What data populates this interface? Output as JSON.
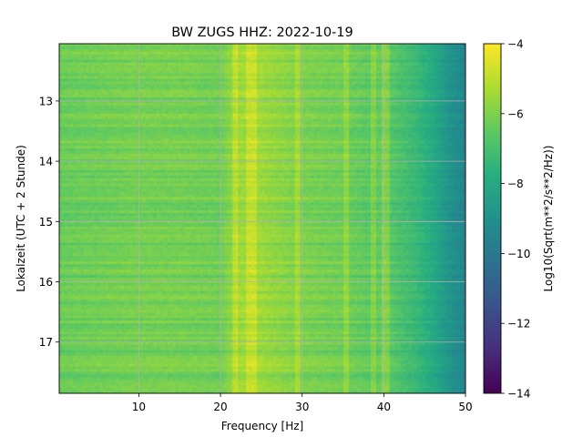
{
  "chart_data": {
    "type": "heatmap",
    "title": "BW ZUGS  HHZ: 2022-10-19",
    "xlabel": "Frequency [Hz]",
    "ylabel": "Lokalzeit (UTC + 2 Stunde)",
    "xlim": [
      0.25,
      50
    ],
    "ylim": [
      12.05,
      17.85
    ],
    "y_inverted": true,
    "xticks": [
      10,
      20,
      30,
      40,
      50
    ],
    "xtick_labels": [
      "10",
      "20",
      "30",
      "40",
      "50"
    ],
    "yticks": [
      13,
      14,
      15,
      16,
      17
    ],
    "ytick_labels": [
      "13",
      "14",
      "15",
      "16",
      "17"
    ],
    "grid": true,
    "colormap": "viridis",
    "colorbar": {
      "label": "Log10(Sqrt(m**2/s**2/Hz))",
      "range": [
        -14,
        -4
      ],
      "ticks": [
        -4,
        -6,
        -8,
        -10,
        -12,
        -14
      ],
      "tick_labels": [
        "−4",
        "−6",
        "−8",
        "−10",
        "−12",
        "−14"
      ]
    },
    "profile": {
      "frequency_hz": [
        0,
        5,
        10,
        15,
        20,
        22,
        24,
        30,
        35,
        38,
        40,
        42,
        44,
        46,
        48,
        50
      ],
      "mean_log_psd": [
        -6.3,
        -6.2,
        -6.1,
        -6.1,
        -6.2,
        -5.5,
        -5.4,
        -6.0,
        -6.2,
        -6.5,
        -6.4,
        -6.9,
        -7.3,
        -7.9,
        -8.8,
        -9.5
      ]
    },
    "bright_frequency_lines_hz": [
      21.9,
      23.6,
      24.0,
      29.5,
      35.5,
      38.6,
      40.2
    ]
  }
}
